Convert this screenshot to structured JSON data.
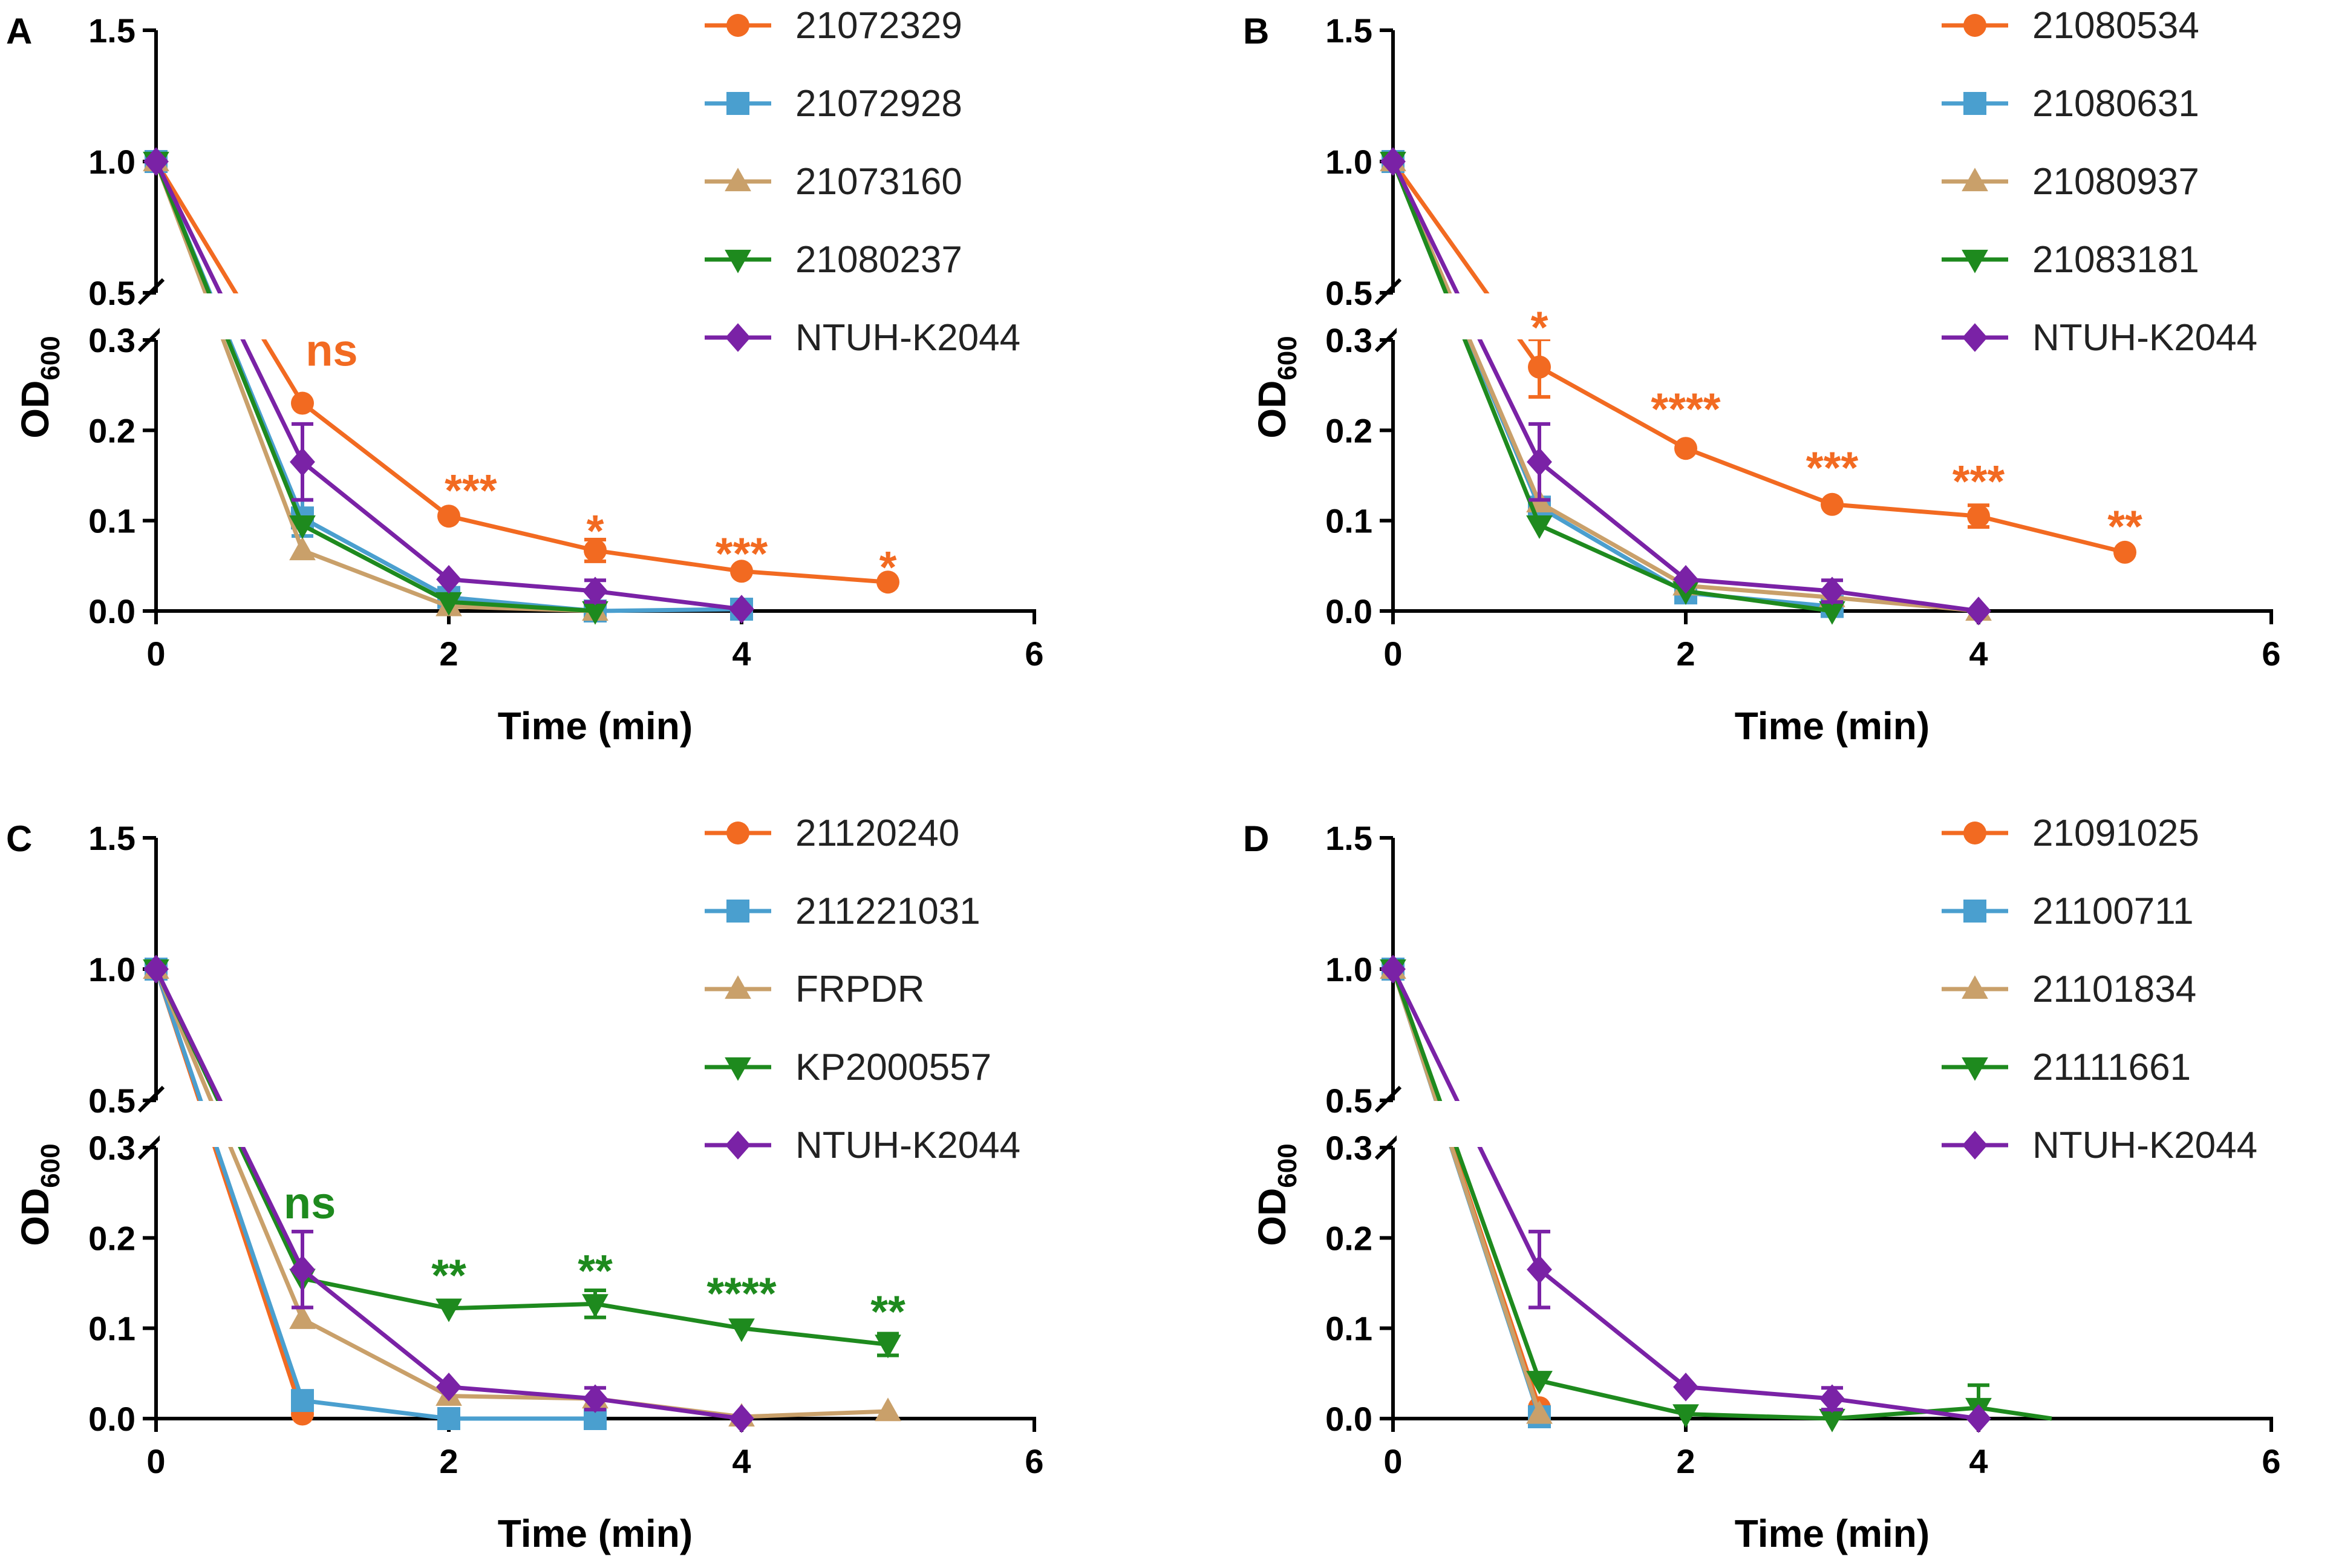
{
  "colors": {
    "orange": "#f26a21",
    "blue": "#4a9fcf",
    "tan": "#c9a06a",
    "green": "#1e8a1e",
    "purple": "#7a22a6",
    "axis": "#000000"
  },
  "common": {
    "xlabel": "Time (min)",
    "ylabel_main": "OD",
    "ylabel_sub": "600",
    "x_ticks": [
      "0",
      "2",
      "4",
      "6"
    ],
    "y_upper_ticks": [
      "0.5",
      "1.0",
      "1.5"
    ],
    "y_lower_ticks": [
      "0.0",
      "0.1",
      "0.2",
      "0.3"
    ]
  },
  "chart_data": [
    {
      "panel": "A",
      "type": "line",
      "xlabel": "Time (min)",
      "ylabel": "OD600",
      "xlim": [
        0,
        6
      ],
      "ylim_lower": [
        0,
        0.3
      ],
      "ylim_upper": [
        0.5,
        1.5
      ],
      "series": [
        {
          "name": "21072329",
          "color": "orange",
          "marker": "circle",
          "points": [
            {
              "x": 0,
              "y": 1.0
            },
            {
              "x": 1,
              "y": 0.23
            },
            {
              "x": 2,
              "y": 0.105
            },
            {
              "x": 3,
              "y": 0.067,
              "err": 0.012
            },
            {
              "x": 4,
              "y": 0.044
            },
            {
              "x": 5,
              "y": 0.032
            }
          ]
        },
        {
          "name": "21072928",
          "color": "blue",
          "marker": "square",
          "points": [
            {
              "x": 0,
              "y": 1.0
            },
            {
              "x": 1,
              "y": 0.103,
              "err": 0.02
            },
            {
              "x": 2,
              "y": 0.015
            },
            {
              "x": 3,
              "y": 0.0
            },
            {
              "x": 4,
              "y": 0.002
            }
          ]
        },
        {
          "name": "21073160",
          "color": "tan",
          "marker": "triangle-up",
          "points": [
            {
              "x": 0,
              "y": 1.0
            },
            {
              "x": 1,
              "y": 0.067
            },
            {
              "x": 2,
              "y": 0.005
            },
            {
              "x": 3,
              "y": 0.0
            }
          ]
        },
        {
          "name": "21080237",
          "color": "green",
          "marker": "triangle-down",
          "points": [
            {
              "x": 0,
              "y": 1.0
            },
            {
              "x": 1,
              "y": 0.095
            },
            {
              "x": 2,
              "y": 0.01
            },
            {
              "x": 3,
              "y": 0.0
            }
          ]
        },
        {
          "name": "NTUH-K2044",
          "color": "purple",
          "marker": "diamond",
          "points": [
            {
              "x": 0,
              "y": 1.0
            },
            {
              "x": 1,
              "y": 0.165,
              "err": 0.042
            },
            {
              "x": 2,
              "y": 0.035
            },
            {
              "x": 3,
              "y": 0.022,
              "err": 0.012
            },
            {
              "x": 4,
              "y": 0.002
            }
          ]
        }
      ],
      "annotations": [
        {
          "text": "ns",
          "x": 1.2,
          "y": 0.285,
          "color": "orange"
        },
        {
          "text": "***",
          "x": 2.15,
          "y": 0.13,
          "color": "orange"
        },
        {
          "text": "*",
          "x": 3.0,
          "y": 0.085,
          "color": "orange"
        },
        {
          "text": "***",
          "x": 4.0,
          "y": 0.06,
          "color": "orange"
        },
        {
          "text": "*",
          "x": 5.0,
          "y": 0.045,
          "color": "orange"
        }
      ]
    },
    {
      "panel": "B",
      "type": "line",
      "xlabel": "Time (min)",
      "ylabel": "OD600",
      "xlim": [
        0,
        6
      ],
      "ylim_lower": [
        0,
        0.3
      ],
      "ylim_upper": [
        0.5,
        1.5
      ],
      "series": [
        {
          "name": "21080534",
          "color": "orange",
          "marker": "circle",
          "points": [
            {
              "x": 0,
              "y": 1.0
            },
            {
              "x": 1,
              "y": 0.27,
              "err": 0.033
            },
            {
              "x": 2,
              "y": 0.18
            },
            {
              "x": 3,
              "y": 0.118
            },
            {
              "x": 4,
              "y": 0.105,
              "err": 0.012
            },
            {
              "x": 5,
              "y": 0.065
            }
          ]
        },
        {
          "name": "21080631",
          "color": "blue",
          "marker": "square",
          "points": [
            {
              "x": 0,
              "y": 1.0
            },
            {
              "x": 1,
              "y": 0.115
            },
            {
              "x": 2,
              "y": 0.02
            },
            {
              "x": 3,
              "y": 0.005
            }
          ]
        },
        {
          "name": "21080937",
          "color": "tan",
          "marker": "triangle-up",
          "points": [
            {
              "x": 0,
              "y": 1.0
            },
            {
              "x": 1,
              "y": 0.12
            },
            {
              "x": 2,
              "y": 0.028
            },
            {
              "x": 3,
              "y": 0.015
            },
            {
              "x": 4,
              "y": 0.0
            }
          ]
        },
        {
          "name": "21083181",
          "color": "green",
          "marker": "triangle-down",
          "points": [
            {
              "x": 0,
              "y": 1.0
            },
            {
              "x": 1,
              "y": 0.095
            },
            {
              "x": 2,
              "y": 0.022
            },
            {
              "x": 3,
              "y": 0.0
            }
          ]
        },
        {
          "name": "NTUH-K2044",
          "color": "purple",
          "marker": "diamond",
          "points": [
            {
              "x": 0,
              "y": 1.0
            },
            {
              "x": 1,
              "y": 0.165,
              "err": 0.042
            },
            {
              "x": 2,
              "y": 0.035
            },
            {
              "x": 3,
              "y": 0.022,
              "err": 0.012
            },
            {
              "x": 4,
              "y": 0.0
            }
          ]
        }
      ],
      "annotations": [
        {
          "text": "*",
          "x": 1.0,
          "y": 0.34,
          "color": "orange"
        },
        {
          "text": "****",
          "x": 2.0,
          "y": 0.22,
          "color": "orange"
        },
        {
          "text": "***",
          "x": 3.0,
          "y": 0.155,
          "color": "orange"
        },
        {
          "text": "***",
          "x": 4.0,
          "y": 0.14,
          "color": "orange"
        },
        {
          "text": "**",
          "x": 5.0,
          "y": 0.09,
          "color": "orange"
        }
      ]
    },
    {
      "panel": "C",
      "type": "line",
      "xlabel": "Time (min)",
      "ylabel": "OD600",
      "xlim": [
        0,
        6
      ],
      "ylim_lower": [
        0,
        0.3
      ],
      "ylim_upper": [
        0.5,
        1.5
      ],
      "series": [
        {
          "name": "21120240",
          "color": "orange",
          "marker": "circle",
          "points": [
            {
              "x": 0,
              "y": 1.0
            },
            {
              "x": 1,
              "y": 0.005
            }
          ]
        },
        {
          "name": "211221031",
          "color": "blue",
          "marker": "square",
          "points": [
            {
              "x": 0,
              "y": 1.0
            },
            {
              "x": 1,
              "y": 0.02
            },
            {
              "x": 2,
              "y": 0.0
            },
            {
              "x": 3,
              "y": 0.0
            }
          ]
        },
        {
          "name": "FRPDR",
          "color": "tan",
          "marker": "triangle-up",
          "points": [
            {
              "x": 0,
              "y": 1.0
            },
            {
              "x": 1,
              "y": 0.11
            },
            {
              "x": 2,
              "y": 0.025
            },
            {
              "x": 3,
              "y": 0.022
            },
            {
              "x": 4,
              "y": 0.002
            },
            {
              "x": 5,
              "y": 0.008
            }
          ]
        },
        {
          "name": "KP2000557",
          "color": "green",
          "marker": "triangle-down",
          "points": [
            {
              "x": 0,
              "y": 1.0
            },
            {
              "x": 1,
              "y": 0.155
            },
            {
              "x": 2,
              "y": 0.122
            },
            {
              "x": 3,
              "y": 0.127,
              "err": 0.015
            },
            {
              "x": 4,
              "y": 0.1
            },
            {
              "x": 5,
              "y": 0.082,
              "err": 0.012
            }
          ]
        },
        {
          "name": "NTUH-K2044",
          "color": "purple",
          "marker": "diamond",
          "points": [
            {
              "x": 0,
              "y": 1.0
            },
            {
              "x": 1,
              "y": 0.165,
              "err": 0.042
            },
            {
              "x": 2,
              "y": 0.035
            },
            {
              "x": 3,
              "y": 0.022,
              "err": 0.012
            },
            {
              "x": 4,
              "y": 0.0
            }
          ]
        }
      ],
      "annotations": [
        {
          "text": "ns",
          "x": 1.05,
          "y": 0.235,
          "color": "green"
        },
        {
          "text": "**",
          "x": 2.0,
          "y": 0.155,
          "color": "green"
        },
        {
          "text": "**",
          "x": 3.0,
          "y": 0.16,
          "color": "green"
        },
        {
          "text": "****",
          "x": 4.0,
          "y": 0.135,
          "color": "green"
        },
        {
          "text": "**",
          "x": 5.0,
          "y": 0.115,
          "color": "green"
        }
      ]
    },
    {
      "panel": "D",
      "type": "line",
      "xlabel": "Time (min)",
      "ylabel": "OD600",
      "xlim": [
        0,
        6
      ],
      "ylim_lower": [
        0,
        0.3
      ],
      "ylim_upper": [
        0.5,
        1.5
      ],
      "series": [
        {
          "name": "21091025",
          "color": "orange",
          "marker": "circle",
          "points": [
            {
              "x": 0,
              "y": 1.0
            },
            {
              "x": 1,
              "y": 0.012
            }
          ]
        },
        {
          "name": "21100711",
          "color": "blue",
          "marker": "square",
          "points": [
            {
              "x": 0,
              "y": 1.0
            },
            {
              "x": 1,
              "y": 0.002
            }
          ]
        },
        {
          "name": "21101834",
          "color": "tan",
          "marker": "triangle-up",
          "points": [
            {
              "x": 0,
              "y": 1.0
            },
            {
              "x": 1,
              "y": 0.005
            }
          ]
        },
        {
          "name": "21111661",
          "color": "green",
          "marker": "triangle-down",
          "points": [
            {
              "x": 0,
              "y": 1.0
            },
            {
              "x": 1,
              "y": 0.042
            },
            {
              "x": 2,
              "y": 0.005
            },
            {
              "x": 3,
              "y": 0.0
            },
            {
              "x": 4,
              "y": 0.012,
              "err": 0.025
            },
            {
              "x": 4.5,
              "y": 0.0
            }
          ]
        },
        {
          "name": "NTUH-K2044",
          "color": "purple",
          "marker": "diamond",
          "points": [
            {
              "x": 0,
              "y": 1.0
            },
            {
              "x": 1,
              "y": 0.165,
              "err": 0.042
            },
            {
              "x": 2,
              "y": 0.035
            },
            {
              "x": 3,
              "y": 0.022,
              "err": 0.012
            },
            {
              "x": 4,
              "y": 0.0
            }
          ]
        }
      ],
      "annotations": []
    }
  ]
}
